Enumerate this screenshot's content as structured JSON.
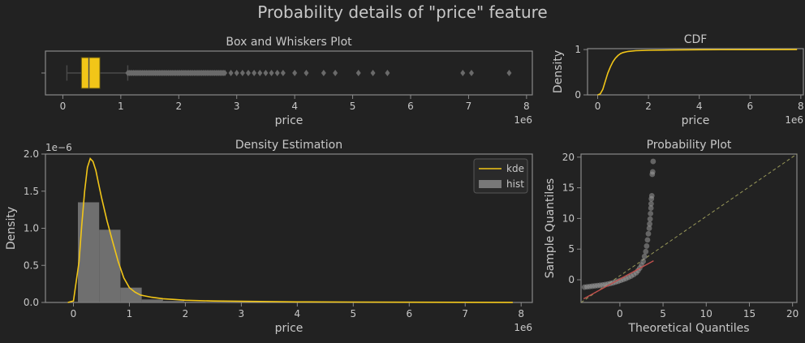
{
  "figure": {
    "suptitle": "Probability details of \"price\" feature",
    "background": "#222222",
    "frame_color": "#8a8a8a",
    "text_color": "#c8c8c8",
    "accent": "#f2c618",
    "hist_color": "#787878",
    "outlier_color": "#6a6a6a"
  },
  "chart_data": [
    {
      "type": "box",
      "title": "Box and Whiskers Plot",
      "xlabel": "price",
      "offset_text": "1e6",
      "xlim": [
        -0.3,
        8.1
      ],
      "xticks": [
        0,
        1,
        2,
        3,
        4,
        5,
        6,
        7,
        8
      ],
      "xtick_labels": [
        "0",
        "1",
        "2",
        "3",
        "4",
        "5",
        "6",
        "7",
        "8"
      ],
      "box": {
        "whisker_low": 0.07,
        "q1": 0.32,
        "median": 0.45,
        "q3": 0.64,
        "whisker_high": 1.12
      },
      "dense_outlier_range": [
        1.12,
        2.8
      ],
      "outliers": [
        2.9,
        3.0,
        3.1,
        3.2,
        3.3,
        3.4,
        3.5,
        3.6,
        3.7,
        3.8,
        4.0,
        4.2,
        4.5,
        4.7,
        5.1,
        5.35,
        5.6,
        6.9,
        7.05,
        7.7
      ]
    },
    {
      "type": "line",
      "title": "CDF",
      "xlabel": "price",
      "ylabel": "Density",
      "offset_text": "1e6",
      "xlim": [
        -0.4,
        8.1
      ],
      "ylim": [
        0,
        1.02
      ],
      "xticks": [
        0,
        2,
        4,
        6,
        8
      ],
      "xtick_labels": [
        "0",
        "2",
        "4",
        "6",
        "8"
      ],
      "yticks": [
        0,
        1
      ],
      "ytick_labels": [
        "0",
        "1"
      ],
      "x": [
        0,
        0.1,
        0.2,
        0.3,
        0.4,
        0.5,
        0.6,
        0.7,
        0.8,
        0.9,
        1.0,
        1.2,
        1.5,
        2.0,
        3.0,
        4.0,
        6.0,
        7.85
      ],
      "y": [
        0,
        0.02,
        0.12,
        0.3,
        0.48,
        0.62,
        0.73,
        0.81,
        0.87,
        0.91,
        0.935,
        0.96,
        0.975,
        0.985,
        0.992,
        0.996,
        0.999,
        1.0
      ]
    },
    {
      "type": "histogram+kde",
      "title": "Density Estimation",
      "xlabel": "price",
      "ylabel": "Density",
      "offset_text": "1e6",
      "y_offset_text": "1e−6",
      "xlim": [
        -0.5,
        8.2
      ],
      "ylim": [
        0,
        2.0
      ],
      "xticks": [
        0,
        1,
        2,
        3,
        4,
        5,
        6,
        7,
        8
      ],
      "xtick_labels": [
        "0",
        "1",
        "2",
        "3",
        "4",
        "5",
        "6",
        "7",
        "8"
      ],
      "yticks": [
        0,
        0.5,
        1.0,
        1.5,
        2.0
      ],
      "ytick_labels": [
        "0.0",
        "0.5",
        "1.0",
        "1.5",
        "2.0"
      ],
      "legend": {
        "position": "top-right",
        "kde": "kde",
        "hist": "hist"
      },
      "hist_bins": [
        {
          "x0": 0.08,
          "x1": 0.46,
          "h": 1.35
        },
        {
          "x0": 0.46,
          "x1": 0.84,
          "h": 0.98
        },
        {
          "x0": 0.84,
          "x1": 1.22,
          "h": 0.2
        },
        {
          "x0": 1.22,
          "x1": 1.6,
          "h": 0.04
        },
        {
          "x0": 1.6,
          "x1": 1.98,
          "h": 0.02
        },
        {
          "x0": 1.98,
          "x1": 2.36,
          "h": 0.01
        }
      ],
      "kde_x": [
        -0.1,
        0.0,
        0.1,
        0.15,
        0.2,
        0.25,
        0.3,
        0.35,
        0.4,
        0.45,
        0.5,
        0.6,
        0.7,
        0.8,
        0.9,
        1.0,
        1.1,
        1.2,
        1.4,
        1.6,
        1.8,
        2.0,
        2.5,
        3.0,
        4.0,
        5.0,
        6.0,
        7.0,
        7.85
      ],
      "kde_y": [
        0.0,
        0.02,
        0.55,
        1.05,
        1.5,
        1.82,
        1.94,
        1.9,
        1.78,
        1.6,
        1.42,
        1.1,
        0.82,
        0.55,
        0.33,
        0.2,
        0.14,
        0.1,
        0.07,
        0.05,
        0.04,
        0.03,
        0.02,
        0.015,
        0.008,
        0.005,
        0.003,
        0.002,
        0.001
      ]
    },
    {
      "type": "scatter",
      "title": "Probability Plot",
      "xlabel": "Theoretical Quantiles",
      "ylabel": "Sample Quantiles",
      "xlim": [
        -4.5,
        20.5
      ],
      "ylim": [
        -3.7,
        20.5
      ],
      "xticks": [
        0,
        5,
        10,
        15,
        20
      ],
      "xtick_labels": [
        "0",
        "5",
        "10",
        "15",
        "20"
      ],
      "yticks": [
        0,
        5,
        10,
        15,
        20
      ],
      "ytick_labels": [
        "0",
        "5",
        "10",
        "15",
        "20"
      ],
      "reference_line": {
        "x": [
          -4.5,
          20.5
        ],
        "y": [
          -3.7,
          20.5
        ],
        "color": "#9a9a5a"
      },
      "fit_line": {
        "x": [
          -4.2,
          3.9
        ],
        "y": [
          -3.1,
          3.1
        ],
        "color": "#c0504d"
      },
      "points": [
        [
          -4.1,
          -1.2
        ],
        [
          -3.8,
          -1.15
        ],
        [
          -3.5,
          -1.1
        ],
        [
          -3.2,
          -1.05
        ],
        [
          -2.9,
          -1.0
        ],
        [
          -2.6,
          -0.95
        ],
        [
          -2.3,
          -0.9
        ],
        [
          -2.0,
          -0.85
        ],
        [
          -1.7,
          -0.78
        ],
        [
          -1.4,
          -0.7
        ],
        [
          -1.1,
          -0.6
        ],
        [
          -0.8,
          -0.5
        ],
        [
          -0.5,
          -0.38
        ],
        [
          -0.2,
          -0.25
        ],
        [
          0.1,
          -0.1
        ],
        [
          0.4,
          0.05
        ],
        [
          0.7,
          0.2
        ],
        [
          1.0,
          0.4
        ],
        [
          1.3,
          0.6
        ],
        [
          1.6,
          0.85
        ],
        [
          1.9,
          1.15
        ],
        [
          2.1,
          1.5
        ],
        [
          2.3,
          1.9
        ],
        [
          2.5,
          2.4
        ],
        [
          2.7,
          3.0
        ],
        [
          2.85,
          3.8
        ],
        [
          3.0,
          4.6
        ],
        [
          3.1,
          5.5
        ],
        [
          3.2,
          6.5
        ],
        [
          3.3,
          7.5
        ],
        [
          3.4,
          8.4
        ],
        [
          3.45,
          9.1
        ],
        [
          3.5,
          9.9
        ],
        [
          3.55,
          10.8
        ],
        [
          3.6,
          11.7
        ],
        [
          3.62,
          12.4
        ],
        [
          3.65,
          13.2
        ],
        [
          3.7,
          13.7
        ],
        [
          3.75,
          17.2
        ],
        [
          3.8,
          17.6
        ],
        [
          3.85,
          19.3
        ]
      ]
    }
  ]
}
